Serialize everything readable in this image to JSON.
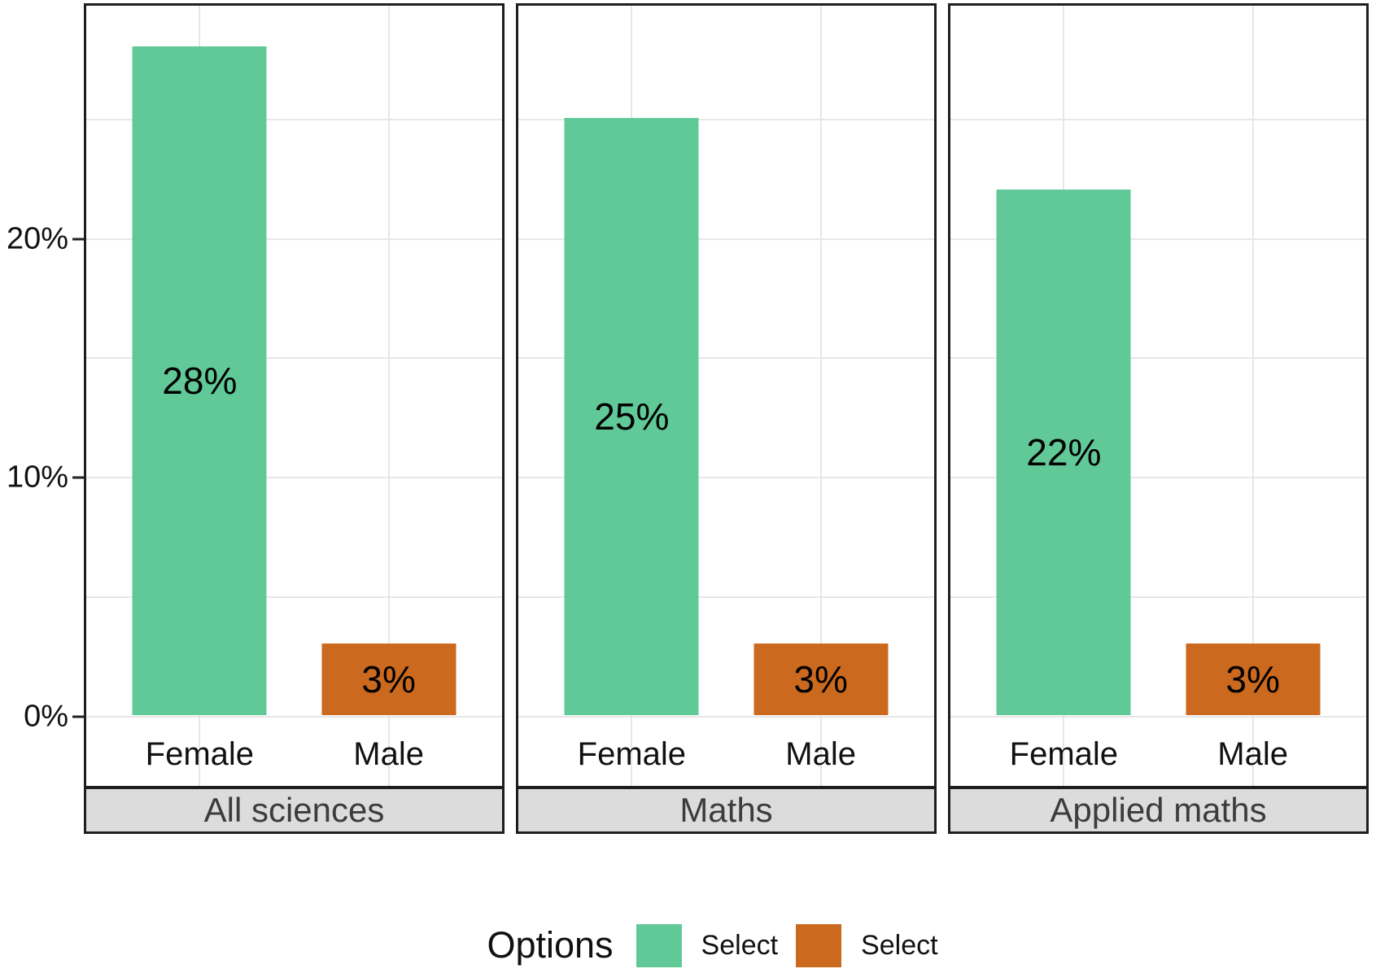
{
  "chart_data": {
    "type": "bar",
    "title": "",
    "categories": [
      "Female",
      "Male"
    ],
    "facets": [
      {
        "strip_label": "All sciences",
        "values": [
          28,
          3
        ],
        "labels": [
          "28%",
          "3%"
        ]
      },
      {
        "strip_label": "Maths",
        "values": [
          25,
          3
        ],
        "labels": [
          "25%",
          "3%"
        ]
      },
      {
        "strip_label": "Applied maths",
        "values": [
          22,
          3
        ],
        "labels": [
          "22%",
          "3%"
        ]
      }
    ],
    "bar_colors": [
      "#61c998",
      "#cb691e"
    ],
    "y_axis": {
      "tick_labels": [
        "0%",
        "10%",
        "20%"
      ],
      "tick_values": [
        0,
        10,
        20
      ],
      "gridline_values": [
        0,
        5,
        10,
        15,
        20,
        25
      ],
      "ylim": [
        -3,
        29.8
      ]
    },
    "grid": true,
    "legend": {
      "position": "bottom",
      "title": "Options",
      "entries": [
        {
          "label": "Select",
          "color": "#61c998"
        },
        {
          "label": "Select",
          "color": "#cb691e"
        }
      ]
    }
  }
}
